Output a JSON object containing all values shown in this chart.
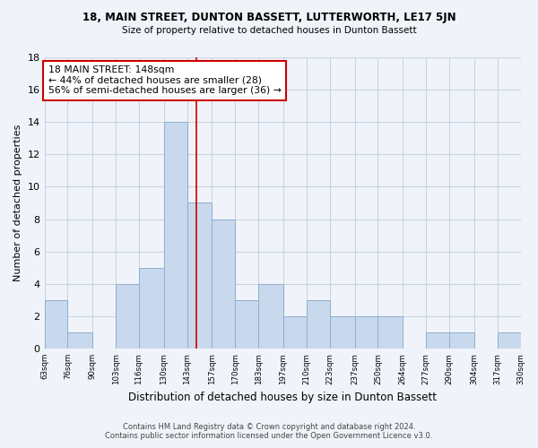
{
  "title": "18, MAIN STREET, DUNTON BASSETT, LUTTERWORTH, LE17 5JN",
  "subtitle": "Size of property relative to detached houses in Dunton Bassett",
  "xlabel": "Distribution of detached houses by size in Dunton Bassett",
  "ylabel": "Number of detached properties",
  "bin_edges": [
    63,
    76,
    90,
    103,
    116,
    130,
    143,
    157,
    170,
    183,
    197,
    210,
    223,
    237,
    250,
    264,
    277,
    290,
    304,
    317,
    330
  ],
  "counts": [
    3,
    1,
    0,
    4,
    5,
    14,
    9,
    8,
    3,
    4,
    2,
    3,
    2,
    2,
    2,
    0,
    1,
    1,
    0,
    1
  ],
  "bar_color": "#c9d9ed",
  "bar_edge_color": "#8eaecf",
  "property_value": 148,
  "vline_color": "#cc0000",
  "annotation_title": "18 MAIN STREET: 148sqm",
  "annotation_line1": "← 44% of detached houses are smaller (28)",
  "annotation_line2": "56% of semi-detached houses are larger (36) →",
  "annotation_box_color": "#ffffff",
  "annotation_box_edge": "#cc0000",
  "ylim": [
    0,
    18
  ],
  "yticks": [
    0,
    2,
    4,
    6,
    8,
    10,
    12,
    14,
    16,
    18
  ],
  "tick_labels": [
    "63sqm",
    "76sqm",
    "90sqm",
    "103sqm",
    "116sqm",
    "130sqm",
    "143sqm",
    "157sqm",
    "170sqm",
    "183sqm",
    "197sqm",
    "210sqm",
    "223sqm",
    "237sqm",
    "250sqm",
    "264sqm",
    "277sqm",
    "290sqm",
    "304sqm",
    "317sqm",
    "330sqm"
  ],
  "footer_line1": "Contains HM Land Registry data © Crown copyright and database right 2024.",
  "footer_line2": "Contains public sector information licensed under the Open Government Licence v3.0.",
  "grid_color": "#c8d4e4",
  "bg_color": "#f0f4fa",
  "plot_bg_color": "#f0f4fa"
}
